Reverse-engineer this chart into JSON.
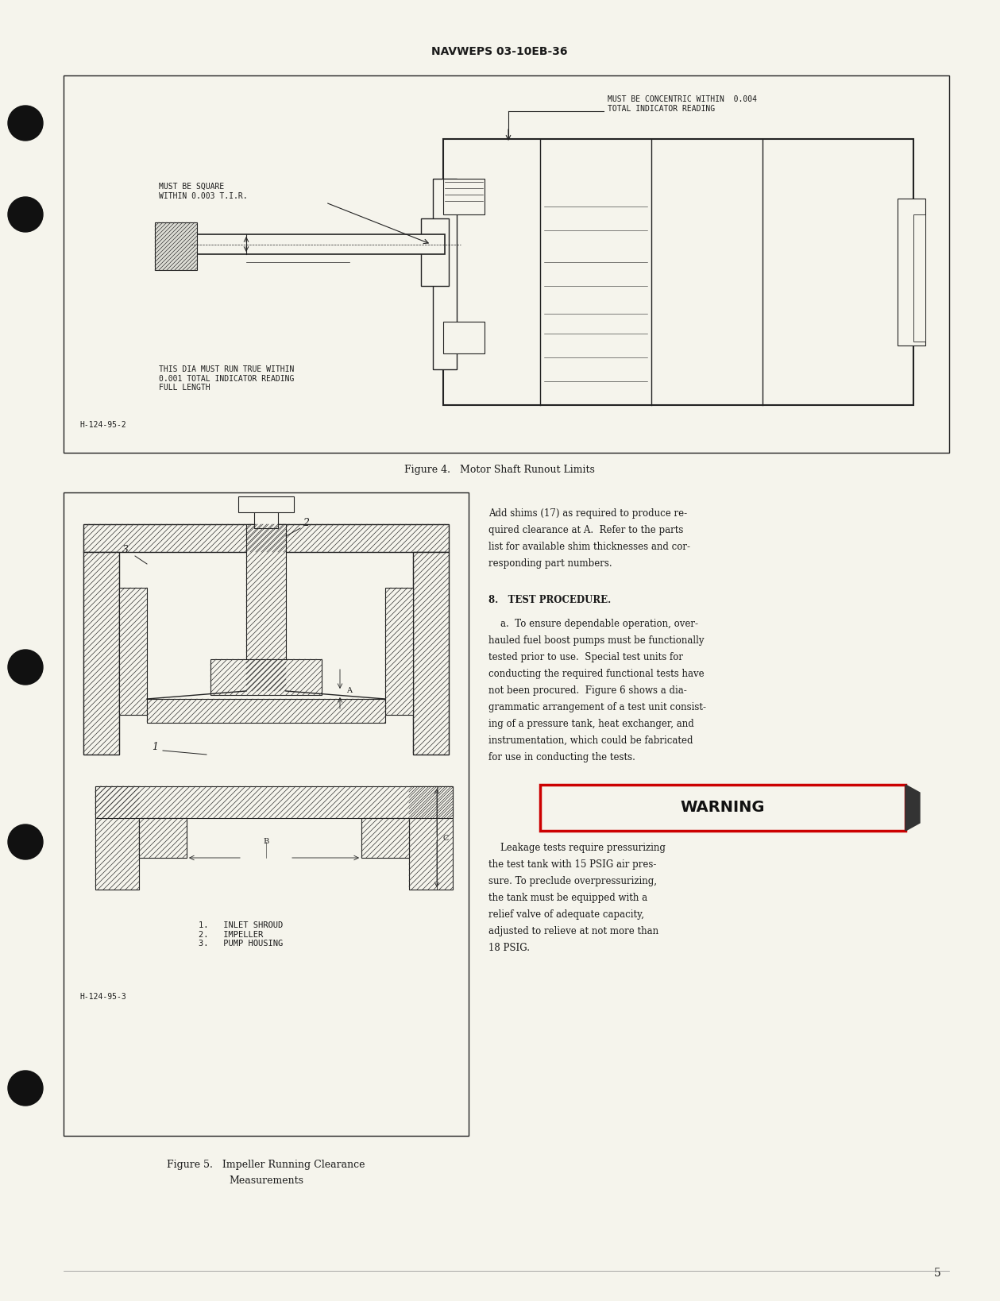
{
  "page_background": "#F5F4EC",
  "header_text": "NAVWEPS 03-10EB-36",
  "header_fontsize": 10,
  "page_number": "5",
  "page_number_fontsize": 10,
  "fig4_caption": "Figure 4.   Motor Shaft Runout Limits",
  "fig5_caption_line1": "Figure 5.   Impeller Running Clearance",
  "fig5_caption_line2": "Measurements",
  "figure_caption_fontsize": 9,
  "text_color": "#1a1a1a",
  "line_color": "#222222",
  "hatch_color": "#333333",
  "box_fill": "#F5F4EC",
  "fig4_annot_concentric": "MUST BE CONCENTRIC WITHIN  0.004\nTOTAL INDICATOR READING",
  "fig4_annot_square": "MUST BE SQUARE\nWITHIN 0.003 T.I.R.",
  "fig4_annot_dia": "THIS DIA MUST RUN TRUE WITHIN\n0.001 TOTAL INDICATOR READING\nFULL LENGTH",
  "fig4_annot_ref": "H-124-95-2",
  "fig5_annot_legend": "1.   INLET SHROUD\n2.   IMPELLER\n3.   PUMP HOUSING",
  "fig5_annot_ref": "H-124-95-3",
  "right_col_lines": [
    "Add shims (17) as required to produce re-",
    "quired clearance at A.  Refer to the parts",
    "list for available shim thicknesses and cor-",
    "responding part numbers."
  ],
  "section_8": "8.   TEST PROCEDURE.",
  "para_a_lines": [
    "    a.  To ensure dependable operation, over-",
    "hauled fuel boost pumps must be functionally",
    "tested prior to use.  Special test units for",
    "conducting the required functional tests have",
    "not been procured.  Figure 6 shows a dia-",
    "grammatic arrangement of a test unit consist-",
    "ing of a pressure tank, heat exchanger, and",
    "instrumentation, which could be fabricated",
    "for use in conducting the tests."
  ],
  "warning_label": "WARNING",
  "warning_text_lines": [
    "    Leakage tests require pressurizing",
    "the test tank with 15 PSIG air pres-",
    "sure. To preclude overpressurizing,",
    "the tank must be equipped with a",
    "relief valve of adequate capacity,",
    "adjusted to relieve at not more than",
    "18 PSIG."
  ]
}
